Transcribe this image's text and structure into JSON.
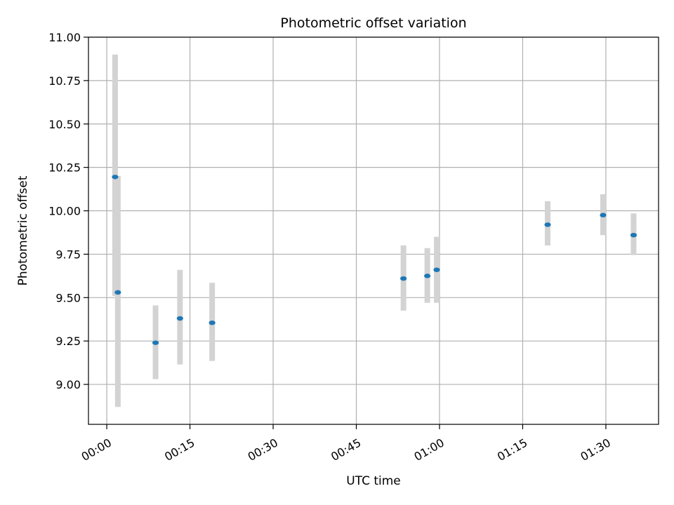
{
  "chart_data": {
    "type": "scatter",
    "title": "Photometric offset variation",
    "xlabel": "UTC time",
    "ylabel": "Photometric offset",
    "x_unit": "minutes",
    "xlim": [
      -3.3,
      99.5
    ],
    "ylim": [
      8.77,
      11.0
    ],
    "x_ticks": [
      0,
      15,
      30,
      45,
      60,
      75,
      90
    ],
    "x_tick_labels": [
      "00:00",
      "00:15",
      "00:30",
      "00:45",
      "01:00",
      "01:15",
      "01:30"
    ],
    "y_ticks": [
      9.0,
      9.25,
      9.5,
      9.75,
      10.0,
      10.25,
      10.5,
      10.75,
      11.0
    ],
    "y_tick_labels": [
      "9.00",
      "9.25",
      "9.50",
      "9.75",
      "10.00",
      "10.25",
      "10.50",
      "10.75",
      "11.00"
    ],
    "grid": true,
    "marker_color": "#1f77b4",
    "errorbar_color": "#d3d3d3",
    "points": [
      {
        "x": 1.5,
        "y": 10.195,
        "ylow": 9.51,
        "yhigh": 10.9
      },
      {
        "x": 2.0,
        "y": 9.53,
        "ylow": 8.87,
        "yhigh": 10.2
      },
      {
        "x": 8.8,
        "y": 9.24,
        "ylow": 9.03,
        "yhigh": 9.455
      },
      {
        "x": 13.2,
        "y": 9.38,
        "ylow": 9.115,
        "yhigh": 9.66
      },
      {
        "x": 19.0,
        "y": 9.355,
        "ylow": 9.135,
        "yhigh": 9.585
      },
      {
        "x": 53.5,
        "y": 9.61,
        "ylow": 9.425,
        "yhigh": 9.8
      },
      {
        "x": 57.8,
        "y": 9.625,
        "ylow": 9.47,
        "yhigh": 9.785
      },
      {
        "x": 59.5,
        "y": 9.66,
        "ylow": 9.47,
        "yhigh": 9.85
      },
      {
        "x": 79.5,
        "y": 9.92,
        "ylow": 9.8,
        "yhigh": 10.055
      },
      {
        "x": 89.5,
        "y": 9.975,
        "ylow": 9.86,
        "yhigh": 10.095
      },
      {
        "x": 95.0,
        "y": 9.86,
        "ylow": 9.745,
        "yhigh": 9.985
      }
    ]
  }
}
